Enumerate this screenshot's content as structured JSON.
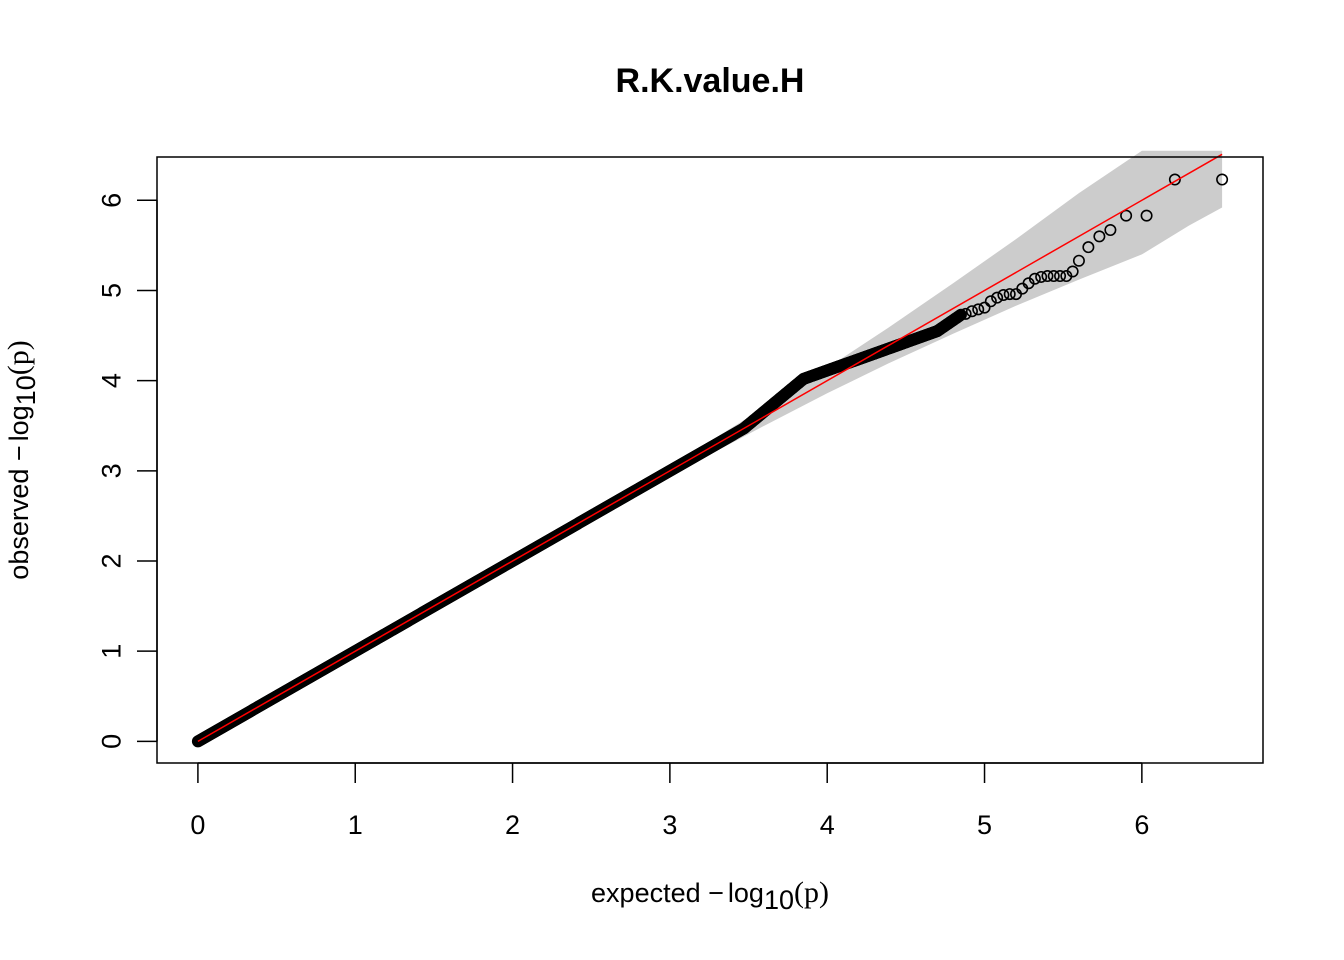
{
  "chart_data": {
    "type": "scatter",
    "title": "R.K.value.H",
    "xlabel": {
      "prefix": "expected ",
      "minus": "−",
      "log": "log",
      "sub": "10",
      "arg": "(p)"
    },
    "ylabel": {
      "prefix": "observed ",
      "minus": "−",
      "log": "log",
      "sub": "10",
      "arg": "(p)"
    },
    "xlim": [
      -0.26,
      6.77
    ],
    "ylim": [
      -0.24,
      6.48
    ],
    "x_ticks": [
      0,
      1,
      2,
      3,
      4,
      5,
      6
    ],
    "x_tick_labels": [
      "0",
      "1",
      "2",
      "3",
      "4",
      "5",
      "6"
    ],
    "y_ticks": [
      0,
      1,
      2,
      3,
      4,
      5,
      6
    ],
    "y_tick_labels": [
      "0",
      "1",
      "2",
      "3",
      "4",
      "5",
      "6"
    ],
    "grid": false,
    "reference_line": {
      "from": [
        0,
        0
      ],
      "to": [
        6.51,
        6.51
      ],
      "color": "#FF0000"
    },
    "confidence_band": {
      "color": "#CCCCCC",
      "x": [
        3.2,
        3.6,
        4.0,
        4.4,
        4.8,
        5.2,
        5.6,
        6.0,
        6.3,
        6.51
      ],
      "upper": [
        3.27,
        3.7,
        4.14,
        4.6,
        5.08,
        5.57,
        6.08,
        6.55,
        6.55,
        6.55
      ],
      "lower": [
        3.13,
        3.5,
        3.86,
        4.2,
        4.52,
        4.83,
        5.12,
        5.4,
        5.72,
        5.92
      ]
    },
    "series": [
      {
        "marker": "open-circle",
        "color": "#000000",
        "dense_segments": [
          {
            "x_start": 0.0,
            "x_end": 3.47,
            "y_start": 0.0,
            "y_end": 3.47
          },
          {
            "x_start": 3.47,
            "x_end": 3.85,
            "y_start": 3.47,
            "y_end": 4.02
          },
          {
            "x_start": 3.85,
            "x_end": 4.3,
            "y_start": 4.02,
            "y_end": 4.3
          },
          {
            "x_start": 4.3,
            "x_end": 4.7,
            "y_start": 4.3,
            "y_end": 4.55
          },
          {
            "x_start": 4.7,
            "x_end": 4.85,
            "y_start": 4.55,
            "y_end": 4.73
          }
        ],
        "points": [
          {
            "x": 4.88,
            "y": 4.74
          },
          {
            "x": 4.92,
            "y": 4.77
          },
          {
            "x": 4.96,
            "y": 4.79
          },
          {
            "x": 5.0,
            "y": 4.81
          },
          {
            "x": 5.04,
            "y": 4.88
          },
          {
            "x": 5.08,
            "y": 4.92
          },
          {
            "x": 5.12,
            "y": 4.95
          },
          {
            "x": 5.16,
            "y": 4.96
          },
          {
            "x": 5.2,
            "y": 4.96
          },
          {
            "x": 5.24,
            "y": 5.02
          },
          {
            "x": 5.28,
            "y": 5.08
          },
          {
            "x": 5.32,
            "y": 5.13
          },
          {
            "x": 5.36,
            "y": 5.15
          },
          {
            "x": 5.4,
            "y": 5.16
          },
          {
            "x": 5.44,
            "y": 5.16
          },
          {
            "x": 5.48,
            "y": 5.16
          },
          {
            "x": 5.52,
            "y": 5.16
          },
          {
            "x": 5.56,
            "y": 5.21
          },
          {
            "x": 5.6,
            "y": 5.33
          },
          {
            "x": 5.66,
            "y": 5.48
          },
          {
            "x": 5.73,
            "y": 5.6
          },
          {
            "x": 5.8,
            "y": 5.67
          },
          {
            "x": 5.9,
            "y": 5.83
          },
          {
            "x": 6.03,
            "y": 5.83
          },
          {
            "x": 6.21,
            "y": 6.23
          },
          {
            "x": 6.51,
            "y": 6.23
          }
        ]
      }
    ]
  }
}
